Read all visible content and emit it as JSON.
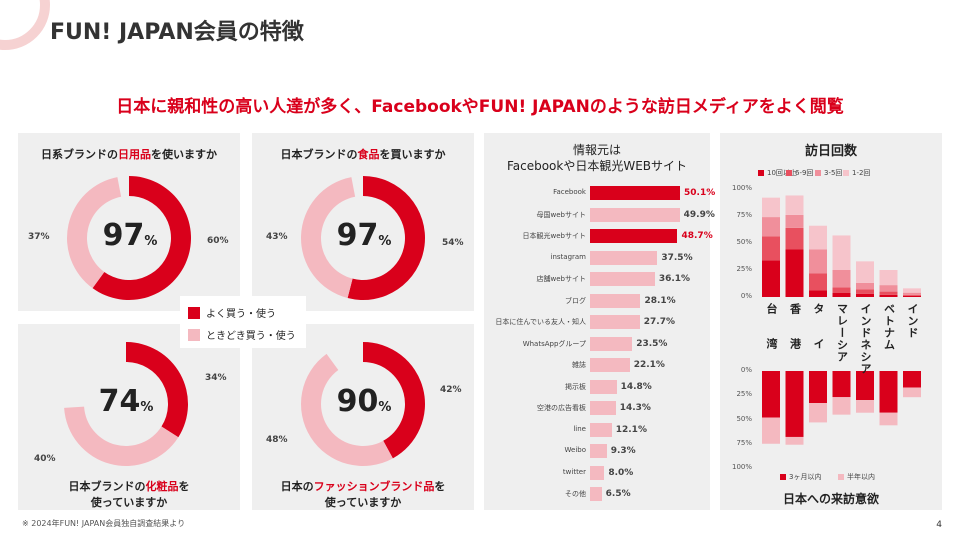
{
  "header": {
    "title": "FUN! JAPAN会員の特徴",
    "subtitle": "日本に親和性の高い人達が多く、FacebookやFUN! JAPANのような訪日メディアをよく閲覧"
  },
  "colors": {
    "primary": "#d9001b",
    "secondary": "#f4b9c0",
    "panel_bg": "#efefef"
  },
  "legend": {
    "strong": "よく買う・使う",
    "light": "ときどき買う・使う"
  },
  "donuts": [
    {
      "title_pre": "日系ブランドの",
      "title_hl": "日用品",
      "title_post": "を使いますか",
      "total": "97",
      "unit": "%",
      "strong_label": "60%",
      "light_label": "37%",
      "strong": 60,
      "light": 37
    },
    {
      "title_pre": "日本ブランドの",
      "title_hl": "食品",
      "title_post": "を買いますか",
      "total": "97",
      "unit": "%",
      "strong_label": "54%",
      "light_label": "43%",
      "strong": 54,
      "light": 43
    },
    {
      "title_pre": "日本ブランドの",
      "title_hl": "化粧品",
      "title_post": "を",
      "title_line2": "使っていますか",
      "total": "74",
      "unit": "%",
      "strong_label": "34%",
      "light_label": "40%",
      "strong": 34,
      "light": 40
    },
    {
      "title_pre": "日本の",
      "title_hl": "ファッションブランド品",
      "title_post": "を",
      "title_line2": "使っていますか",
      "total": "90",
      "unit": "%",
      "strong_label": "42%",
      "light_label": "48%",
      "strong": 42,
      "light": 48
    }
  ],
  "info_sources": {
    "title_line1": "情報元は",
    "title_line2": "Facebookや日本観光WEBサイト",
    "items": [
      {
        "label": "Facebook",
        "value": 50.1,
        "text": "50.1%",
        "highlight": true
      },
      {
        "label": "母国webサイト",
        "value": 49.9,
        "text": "49.9%",
        "highlight": false
      },
      {
        "label": "日本観光webサイト",
        "value": 48.7,
        "text": "48.7%",
        "highlight": true
      },
      {
        "label": "instagram",
        "value": 37.5,
        "text": "37.5%",
        "highlight": false
      },
      {
        "label": "店舗webサイト",
        "value": 36.1,
        "text": "36.1%",
        "highlight": false
      },
      {
        "label": "ブログ",
        "value": 28.1,
        "text": "28.1%",
        "highlight": false
      },
      {
        "label": "日本に住んでいる友人・知人",
        "value": 27.7,
        "text": "27.7%",
        "highlight": false
      },
      {
        "label": "WhatsAppグループ",
        "value": 23.5,
        "text": "23.5%",
        "highlight": false
      },
      {
        "label": "雑誌",
        "value": 22.1,
        "text": "22.1%",
        "highlight": false
      },
      {
        "label": "掲示板",
        "value": 14.8,
        "text": "14.8%",
        "highlight": false
      },
      {
        "label": "空港の広告看板",
        "value": 14.3,
        "text": "14.3%",
        "highlight": false
      },
      {
        "label": "line",
        "value": 12.1,
        "text": "12.1%",
        "highlight": false
      },
      {
        "label": "Weibo",
        "value": 9.3,
        "text": "9.3%",
        "highlight": false
      },
      {
        "label": "twitter",
        "value": 8.0,
        "text": "8.0%",
        "highlight": false
      },
      {
        "label": "その他",
        "value": 6.5,
        "text": "6.5%",
        "highlight": false
      }
    ]
  },
  "visits": {
    "title": "訪日回数",
    "bottom_title": "日本への来訪意欲",
    "legend_top": [
      "10回以上",
      "6-9回",
      "3-5回",
      "1-2回"
    ],
    "legend_top_colors": [
      "#d9001b",
      "#e8505f",
      "#f08f9b",
      "#f6c4cb"
    ],
    "legend_bottom": [
      "3ヶ月以内",
      "半年以内"
    ],
    "legend_bottom_colors": [
      "#d9001b",
      "#f4b9c0"
    ],
    "yticks_top": [
      "100%",
      "75%",
      "50%",
      "25%",
      "0%"
    ],
    "yticks_bottom": [
      "0%",
      "25%",
      "50%",
      "75%",
      "100%"
    ],
    "countries": [
      "台湾",
      "香港",
      "タイ",
      "マレーシア",
      "インドネシア",
      "ベトナム",
      "インド"
    ],
    "top_series": [
      [
        34,
        44,
        6,
        4,
        3,
        2,
        1
      ],
      [
        22,
        20,
        16,
        5,
        4,
        3,
        1
      ],
      [
        18,
        12,
        22,
        16,
        6,
        6,
        2
      ],
      [
        18,
        18,
        22,
        32,
        20,
        14,
        4
      ]
    ],
    "bottom_series": [
      [
        48,
        68,
        33,
        27,
        30,
        43,
        17
      ],
      [
        27,
        8,
        20,
        18,
        13,
        13,
        10
      ]
    ]
  },
  "footer": {
    "note": "※ 2024年FUN! JAPAN会員独自調査結果より",
    "page": "4"
  }
}
